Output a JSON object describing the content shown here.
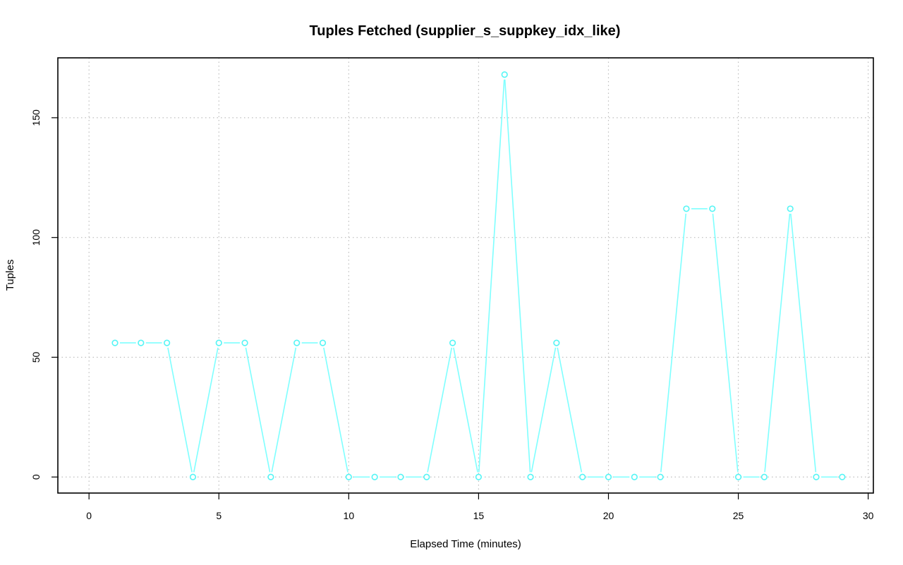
{
  "chart_data": {
    "type": "line",
    "title": "Tuples Fetched (supplier_s_suppkey_idx_like)",
    "xlabel": "Elapsed Time (minutes)",
    "ylabel": "Tuples",
    "xlim": [
      -1.2,
      30.2
    ],
    "ylim": [
      -6.7,
      175
    ],
    "xticks": [
      0,
      5,
      10,
      15,
      20,
      25,
      30
    ],
    "yticks": [
      0,
      50,
      100,
      150
    ],
    "grid": true,
    "line_style": "b",
    "series": [
      {
        "color": "#7fffff",
        "x": [
          1,
          2,
          3,
          4,
          5,
          6,
          7,
          8,
          9,
          10,
          11,
          12,
          13,
          14,
          15,
          16,
          17,
          18,
          19,
          20,
          21,
          22,
          23,
          24,
          25,
          26,
          27,
          28,
          29
        ],
        "y": [
          56,
          56,
          56,
          0,
          56,
          56,
          0,
          56,
          56,
          0,
          0,
          0,
          0,
          56,
          0,
          168,
          0,
          56,
          0,
          0,
          0,
          0,
          112,
          112,
          0,
          0,
          112,
          0,
          0
        ]
      }
    ]
  }
}
